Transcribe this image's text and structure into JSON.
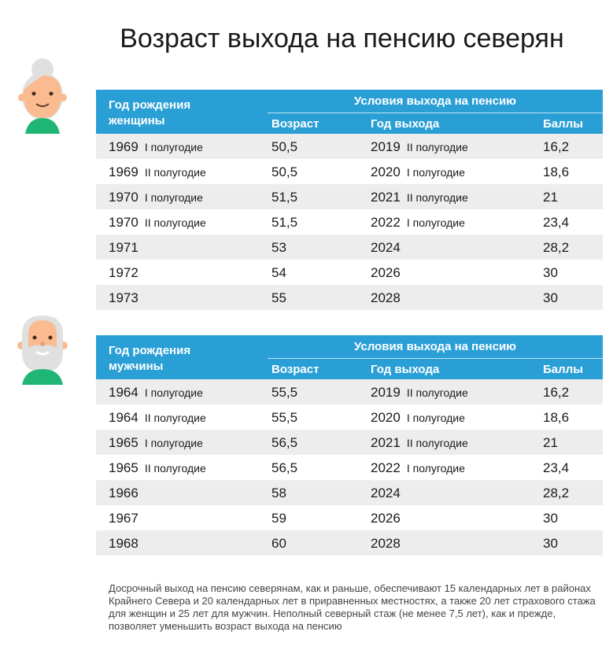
{
  "title": "Возраст выхода на пенсию северян",
  "tables": [
    {
      "header": {
        "col1": "Год рождения женщины",
        "conditions": "Условия выхода на пенсию",
        "age": "Возраст",
        "year": "Год выхода",
        "points": "Баллы"
      },
      "rows": [
        {
          "birth": "1969",
          "birth_half": "I полугодие",
          "age": "50,5",
          "year": "2019",
          "year_half": "II полугодие",
          "points": "16,2"
        },
        {
          "birth": "1969",
          "birth_half": "II полугодие",
          "age": "50,5",
          "year": "2020",
          "year_half": "I полугодие",
          "points": "18,6"
        },
        {
          "birth": "1970",
          "birth_half": "I полугодие",
          "age": "51,5",
          "year": "2021",
          "year_half": "II полугодие",
          "points": "21"
        },
        {
          "birth": "1970",
          "birth_half": "II полугодие",
          "age": "51,5",
          "year": "2022",
          "year_half": "I полугодие",
          "points": "23,4"
        },
        {
          "birth": "1971",
          "birth_half": "",
          "age": "53",
          "year": "2024",
          "year_half": "",
          "points": "28,2"
        },
        {
          "birth": "1972",
          "birth_half": "",
          "age": "54",
          "year": "2026",
          "year_half": "",
          "points": "30"
        },
        {
          "birth": "1973",
          "birth_half": "",
          "age": "55",
          "year": "2028",
          "year_half": "",
          "points": "30"
        }
      ]
    },
    {
      "header": {
        "col1": "Год рождения мужчины",
        "conditions": "Условия выхода на пенсию",
        "age": "Возраст",
        "year": "Год выхода",
        "points": "Баллы"
      },
      "rows": [
        {
          "birth": "1964",
          "birth_half": "I полугодие",
          "age": "55,5",
          "year": "2019",
          "year_half": "II полугодие",
          "points": "16,2"
        },
        {
          "birth": "1964",
          "birth_half": "II полугодие",
          "age": "55,5",
          "year": "2020",
          "year_half": "I полугодие",
          "points": "18,6"
        },
        {
          "birth": "1965",
          "birth_half": "I полугодие",
          "age": "56,5",
          "year": "2021",
          "year_half": "II полугодие",
          "points": "21"
        },
        {
          "birth": "1965",
          "birth_half": "II полугодие",
          "age": "56,5",
          "year": "2022",
          "year_half": "I полугодие",
          "points": "23,4"
        },
        {
          "birth": "1966",
          "birth_half": "",
          "age": "58",
          "year": "2024",
          "year_half": "",
          "points": "28,2"
        },
        {
          "birth": "1967",
          "birth_half": "",
          "age": "59",
          "year": "2026",
          "year_half": "",
          "points": "30"
        },
        {
          "birth": "1968",
          "birth_half": "",
          "age": "60",
          "year": "2028",
          "year_half": "",
          "points": "30"
        }
      ]
    }
  ],
  "note": "Досрочный выход на пенсию северянам, как и раньше, обеспечивают 15 календарных лет в районах Крайнего Севера и 20 календарных лет в приравненных местностях, а также 20 лет страхового стажа для женщин и 25 лет для мужчин. Неполный северный стаж (не менее 7,5 лет), как и прежде, позволяет уменьшить возраст выхода на пенсию",
  "colors": {
    "header": "#2a9fd6",
    "row_alt": "#ededed",
    "shirt": "#1fb574",
    "skin": "#f9bb8f",
    "hair": "#e0e0e0"
  },
  "icons": [
    "woman-avatar-icon",
    "man-avatar-icon"
  ]
}
